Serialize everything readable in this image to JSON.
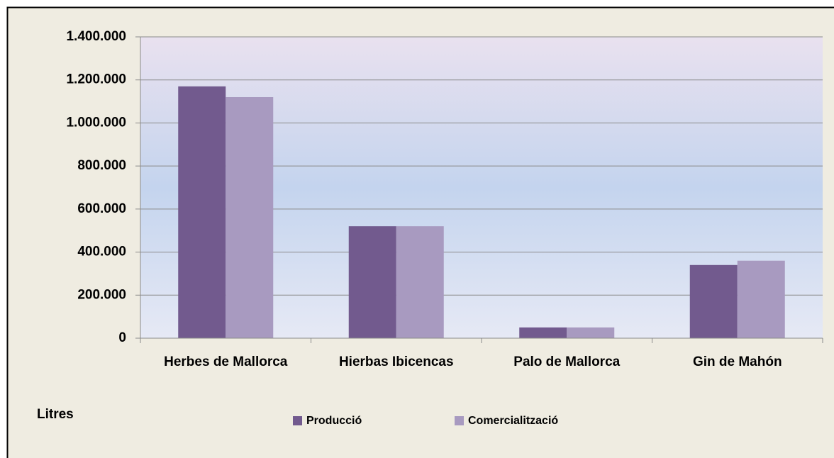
{
  "chart_data": {
    "type": "bar",
    "y_label": "Litres",
    "categories": [
      "Herbes de Mallorca",
      "Hierbas Ibicencas",
      "Palo de Mallorca",
      "Gin de Mahón"
    ],
    "series": [
      {
        "name": "Producció",
        "color": "#725a8e",
        "values": [
          1170000,
          520000,
          50000,
          340000
        ]
      },
      {
        "name": "Comercialització",
        "color": "#a89ac0",
        "values": [
          1120000,
          520000,
          50000,
          360000
        ]
      }
    ],
    "ylim": [
      0,
      1400000
    ],
    "yticks": [
      {
        "value": 0,
        "label": "0"
      },
      {
        "value": 200000,
        "label": "200.000"
      },
      {
        "value": 400000,
        "label": "400.000"
      },
      {
        "value": 600000,
        "label": "600.000"
      },
      {
        "value": 800000,
        "label": "800.000"
      },
      {
        "value": 1000000,
        "label": "1.000.000"
      },
      {
        "value": 1200000,
        "label": "1.200.000"
      },
      {
        "value": 1400000,
        "label": "1.400.000"
      }
    ],
    "grid": true,
    "legend": "bottom"
  }
}
